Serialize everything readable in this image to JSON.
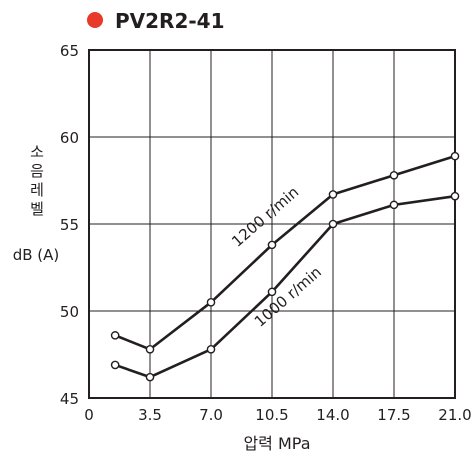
{
  "chart_data": {
    "type": "line",
    "title": "PV2R2-41",
    "title_marker_color": "#e8392b",
    "ylabel_lines": [
      "소",
      "음",
      "레",
      "벨"
    ],
    "yunit": "dB (A)",
    "xlabel": "압력  MPa",
    "xlim": [
      0,
      21.0
    ],
    "ylim": [
      45,
      65
    ],
    "x_ticks": [
      "0",
      "3.5",
      "7.0",
      "10.5",
      "14.0",
      "17.5",
      "21.0"
    ],
    "x_tick_values": [
      0,
      3.5,
      7.0,
      10.5,
      14.0,
      17.5,
      21.0
    ],
    "y_ticks": [
      "45",
      "50",
      "55",
      "60",
      "65"
    ],
    "y_tick_values": [
      45,
      50,
      55,
      60,
      65
    ],
    "grid": true,
    "series": [
      {
        "name": "1200 r/min",
        "x": [
          1.5,
          3.5,
          7.0,
          10.5,
          14.0,
          17.5,
          21.0
        ],
        "y": [
          48.6,
          47.8,
          50.5,
          53.8,
          56.7,
          57.8,
          58.9
        ],
        "label_anchor": [
          10.3,
          55.2
        ],
        "label_angle_deg": -41
      },
      {
        "name": "1000 r/min",
        "x": [
          1.5,
          3.5,
          7.0,
          10.5,
          14.0,
          17.5,
          21.0
        ],
        "y": [
          46.9,
          46.2,
          47.8,
          51.1,
          55.0,
          56.1,
          56.6
        ],
        "label_anchor": [
          11.6,
          50.6
        ],
        "label_angle_deg": -41
      }
    ],
    "line_color": "#231f20"
  }
}
